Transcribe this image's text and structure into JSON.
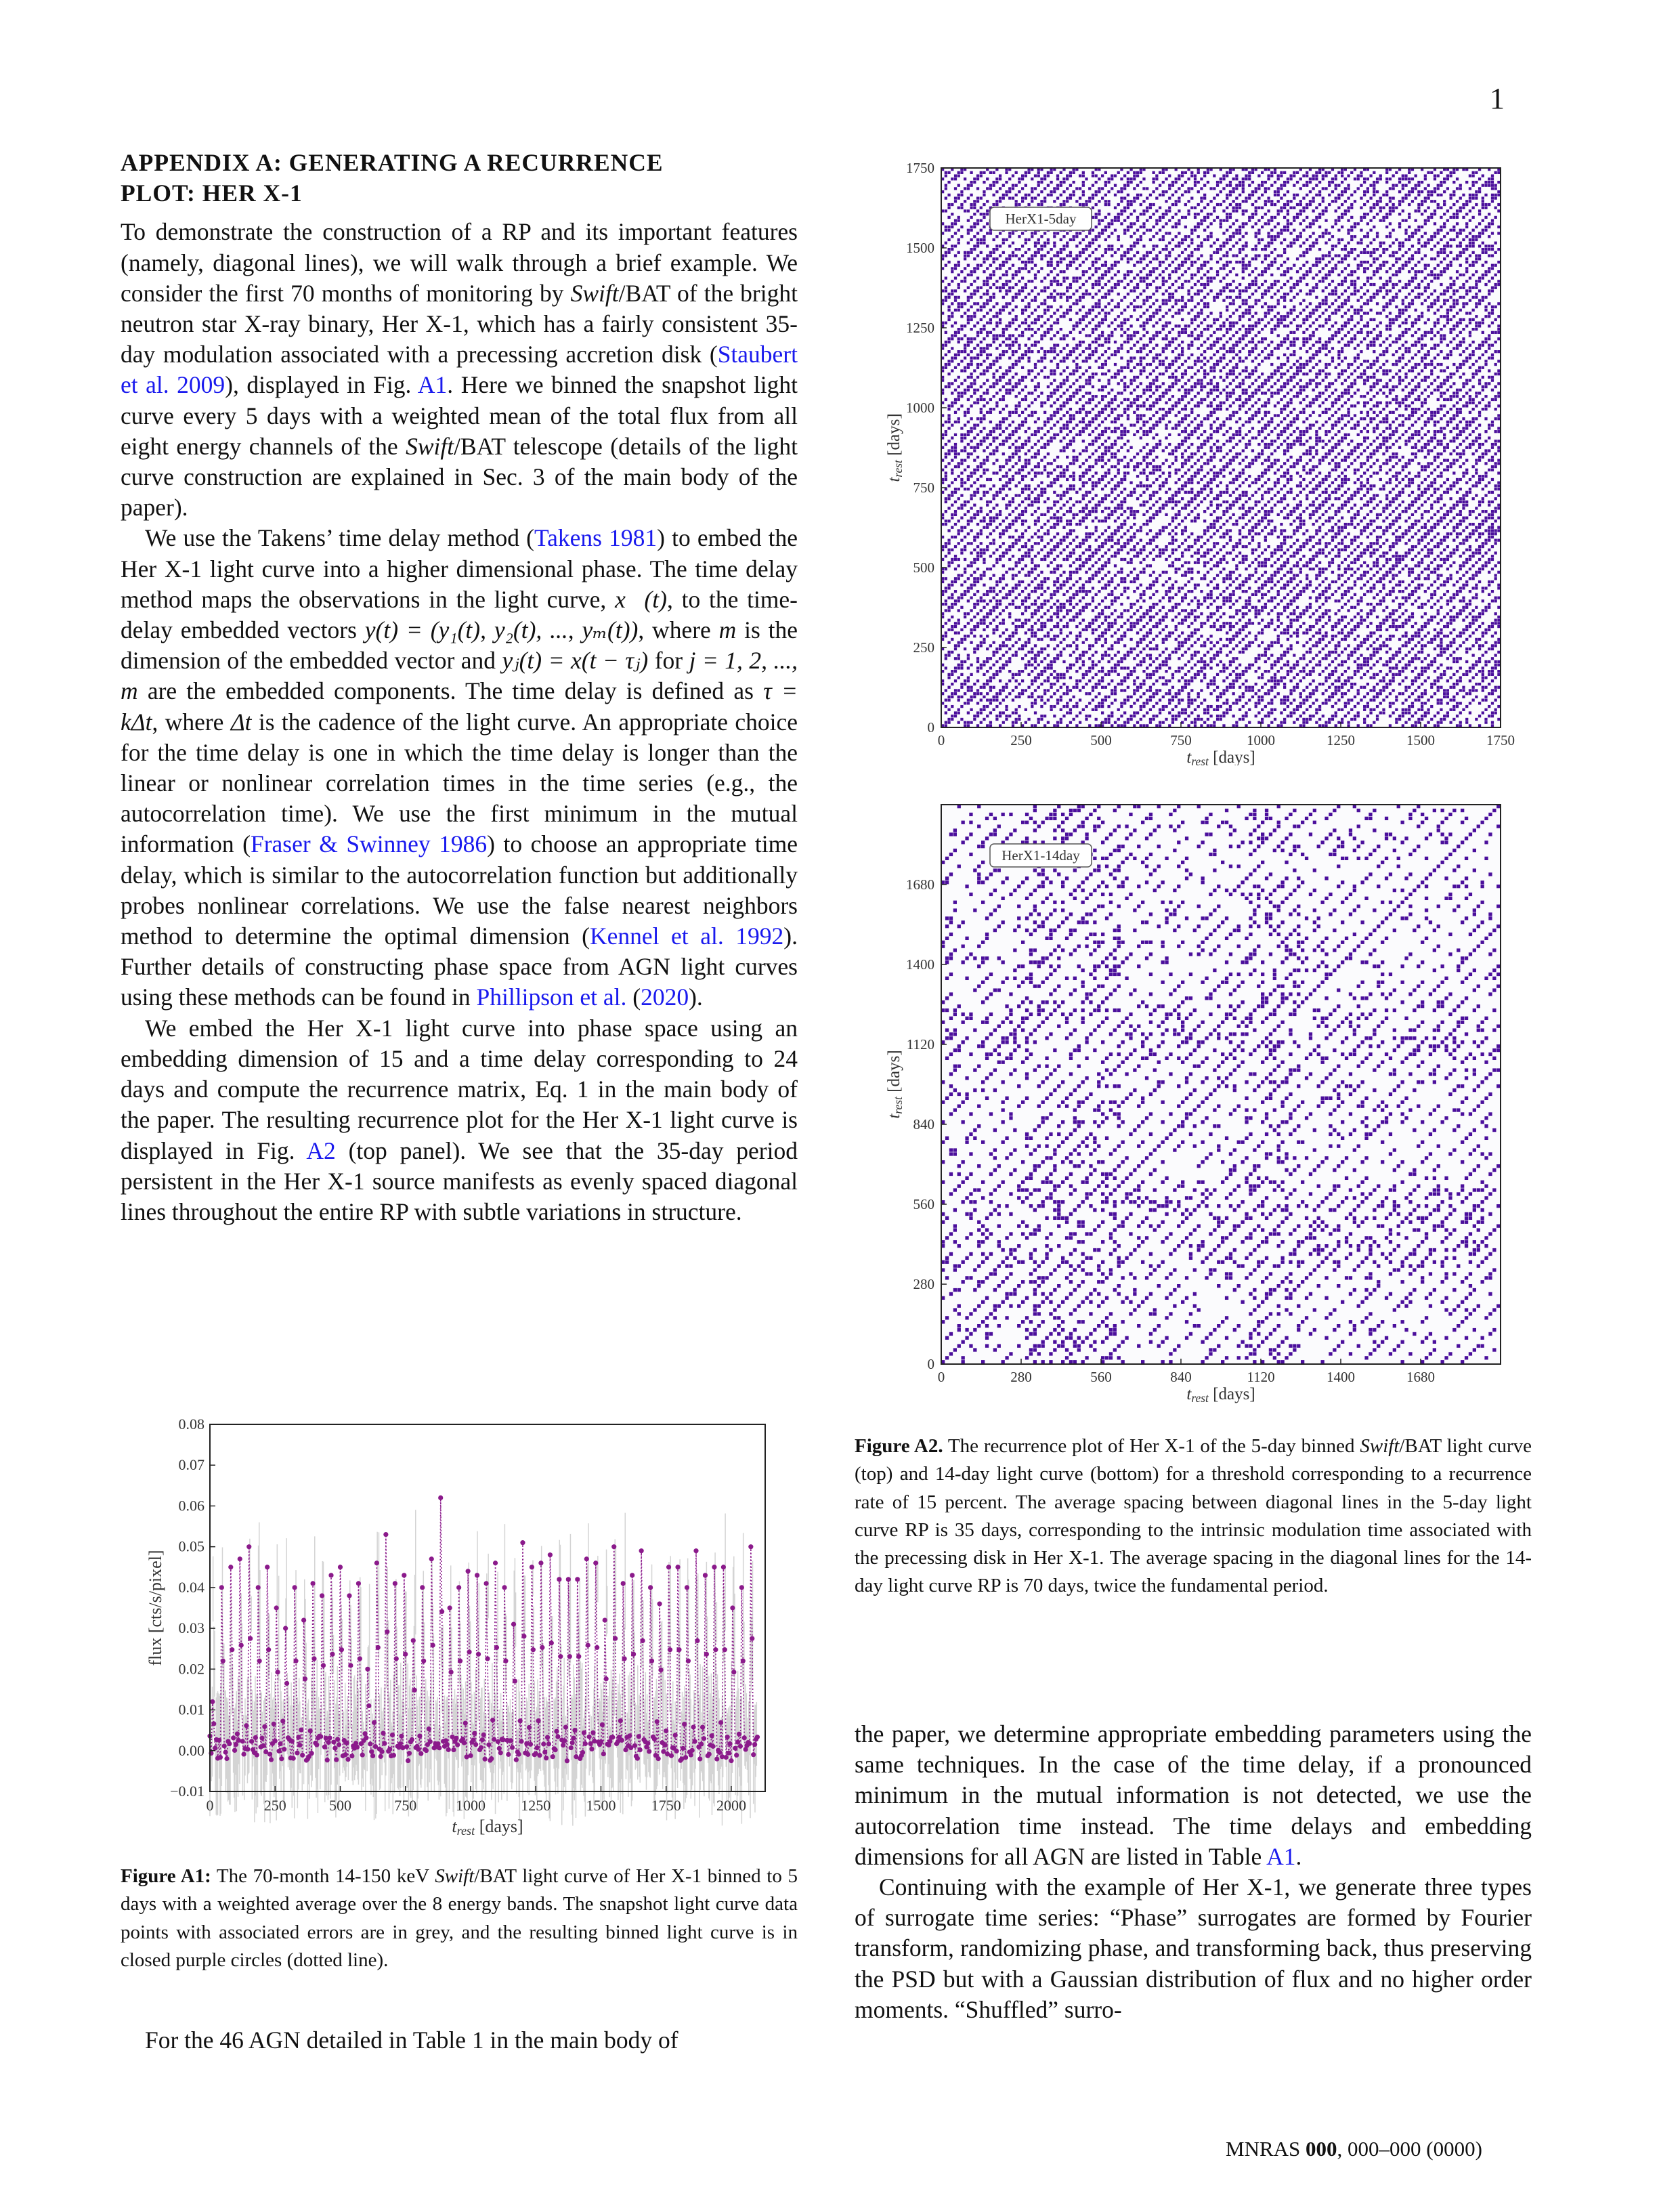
{
  "page_number": "1",
  "heading_line1": "APPENDIX A: GENERATING A RECURRENCE",
  "heading_line2": "PLOT: HER X-1",
  "left_column": {
    "p1": {
      "t1": "To demonstrate the construction of a RP and its important features (namely, diagonal lines), we will walk through a brief example. We consider the first 70 months of monitoring by ",
      "swift": "Swift",
      "t2": "/BAT of the bright neutron star X-ray binary, Her X-1, which has a fairly consistent 35-day modulation associated with a precessing accretion disk (",
      "cite1": "Staubert et al. 2009",
      "t3": "), displayed in Fig. ",
      "cite2": "A1",
      "t4": ". Here we binned the snapshot light curve every 5 days with a weighted mean of the total flux from all eight energy channels of the ",
      "swift2": "Swift",
      "t5": "/BAT telescope (details of the light curve construction are explained in Sec. 3 of the main body of the paper)."
    },
    "p2": {
      "t1": "We use the Takens’ time delay method (",
      "cite1": "Takens 1981",
      "t2": ") to embed the Her X-1 light curve into a higher dimensional phase. The time delay method maps the observations in the light curve, ",
      "m1": "x⃗(t)",
      "t3": ", to the time-delay embedded vectors ",
      "m2": "y(t) = (y₁(t), y₂(t), ..., yₘ(t))",
      "t4": ", where ",
      "m3": "m",
      "t5": " is the dimension of the embedded vector and ",
      "m4": "yⱼ(t) = x(t − τⱼ)",
      "t6": " for ",
      "m5": "j = 1, 2, ..., m",
      "t7": " are the embedded components. The time delay is defined as ",
      "m6": "τ = kΔt",
      "t8": ", where ",
      "m7": "Δt",
      "t9": " is the cadence of the light curve. An appropriate choice for the time delay is one in which the time delay is longer than the linear or nonlinear correlation times in the time series (e.g., the autocorrelation time). We use the first minimum in the mutual information (",
      "cite2": "Fraser & Swinney 1986",
      "t10": ") to choose an appropriate time delay, which is similar to the autocorrelation function but additionally probes nonlinear correlations. We use the false nearest neighbors method to determine the optimal dimension (",
      "cite3": "Kennel et al. 1992",
      "t11": "). Further details of constructing phase space from AGN light curves using these methods can be found in ",
      "cite4": "Phillipson et al.",
      "t12": " (",
      "cite5": "2020",
      "t13": ")."
    },
    "p3": {
      "t1": "We embed the Her X-1 light curve into phase space using an embedding dimension of 15 and a time delay corresponding to 24 days and compute the recurrence matrix, Eq. 1 in the main body of the paper. The resulting recurrence plot for the Her X-1 light curve is displayed in Fig. ",
      "cite1": "A2",
      "t2": " (top panel). We see that the 35-day period persistent in the Her X-1 source manifests as evenly spaced diagonal lines throughout the entire RP with subtle variations in structure."
    },
    "p4": "For the 46 AGN detailed in Table 1 in the main body of"
  },
  "caption_a1": {
    "label": "Figure A1:",
    "t1": " The 70-month 14-150 keV ",
    "swift": "Swift",
    "t2": "/BAT light curve of Her X-1 binned to 5 days with a weighted average over the 8 energy bands. The snapshot light curve data points with associated errors are in grey, and the resulting binned light curve is in closed purple circles (dotted line)."
  },
  "caption_a2": {
    "label": "Figure A2.",
    "t1": " The recurrence plot of Her X-1 of the 5-day binned ",
    "swift": "Swift",
    "t2": "/BAT light curve (top) and 14-day light curve (bottom) for a threshold corresponding to a recurrence rate of 15 percent. The average spacing between diagonal lines in the 5-day light curve RP is 35 days, corresponding to the intrinsic modulation time associated with the precessing disk in Her X-1. The average spacing in the diagonal lines for the 14-day light curve RP is 70 days, twice the fundamental period."
  },
  "right_column": {
    "p1": {
      "t1": "the paper, we determine appropriate embedding parameters using the same techniques. In the case of the time delay, if a pronounced minimum in the mutual information is not detected, we use the autocorrelation time instead. The time delays and embedding dimensions for all AGN are listed in Table ",
      "cite1": "A1",
      "t2": "."
    },
    "p2": "Continuing with the example of Her X-1, we generate three types of surrogate time series: “Phase” surrogates are formed by Fourier transform, randomizing phase, and transforming back, thus preserving the PSD but with a Gaussian distribution of flux and no higher order moments. “Shuffled” surro-"
  },
  "footer": {
    "journal": "MNRAS ",
    "volume": "000",
    "pages": ", 000–000 (0000)"
  },
  "colors": {
    "purple": "#4b0f9c",
    "magenta": "#8b1a8b",
    "grey": "#cccccc",
    "link": "#1a1aee"
  },
  "chart_data": [
    {
      "type": "line",
      "id": "fig-a1",
      "xlabel": "t_rest [days]",
      "ylabel": "flux [cts/s/pixel]",
      "xlim": [
        0,
        2130
      ],
      "ylim": [
        -0.01,
        0.08
      ],
      "xticks": [
        "0",
        "250",
        "500",
        "750",
        "1000",
        "1250",
        "1500",
        "1750",
        "2000"
      ],
      "yticks": [
        "−0.01",
        "0.00",
        "0.01",
        "0.02",
        "0.03",
        "0.04",
        "0.05",
        "0.06",
        "0.07",
        "0.08"
      ],
      "series": [
        {
          "cadence_days": 5,
          "period_days": 35,
          "peak_values": [
            0.012,
            0.04,
            0.045,
            0.047,
            0.05,
            0.04,
            0.045,
            0.035,
            0.03,
            0.04,
            0.032,
            0.041,
            0.038,
            0.043,
            0.045,
            0.038,
            0.041,
            0.02,
            0.046,
            0.053,
            0.041,
            0.043,
            0.027,
            0.04,
            0.047,
            0.062,
            0.035,
            0.04,
            0.044,
            0.043,
            0.041,
            0.046,
            0.04,
            0.031,
            0.051,
            0.045,
            0.046,
            0.048,
            0.042,
            0.042,
            0.042,
            0.047,
            0.046,
            0.032,
            0.05,
            0.041,
            0.043,
            0.049,
            0.04,
            0.036,
            0.045,
            0.045,
            0.04,
            0.049,
            0.043,
            0.045,
            0.045,
            0.035,
            0.04,
            0.05,
            0.047
          ]
        }
      ]
    },
    {
      "type": "heatmap",
      "id": "fig-a2-top",
      "legend": "HerX1-5day",
      "xlabel": "t_rest [days]",
      "ylabel": "t_rest [days]",
      "xlim": [
        0,
        1750
      ],
      "ylim": [
        0,
        1750
      ],
      "xticks": [
        "0",
        "250",
        "500",
        "750",
        "1000",
        "1250",
        "1500",
        "1750"
      ],
      "yticks": [
        "0",
        "250",
        "500",
        "750",
        "1000",
        "1250",
        "1500",
        "1750"
      ],
      "diagonal_spacing_days": 35,
      "recurrence_rate_percent": 15
    },
    {
      "type": "heatmap",
      "id": "fig-a2-bottom",
      "legend": "HerX1-14day",
      "xlabel": "t_rest [days]",
      "ylabel": "t_rest [days]",
      "xlim": [
        0,
        1960
      ],
      "ylim": [
        0,
        1960
      ],
      "xticks": [
        "0",
        "280",
        "560",
        "840",
        "1120",
        "1400",
        "1680"
      ],
      "yticks": [
        "0",
        "280",
        "560",
        "840",
        "1120",
        "1400",
        "1680"
      ],
      "diagonal_spacing_days": 70,
      "recurrence_rate_percent": 15
    }
  ]
}
